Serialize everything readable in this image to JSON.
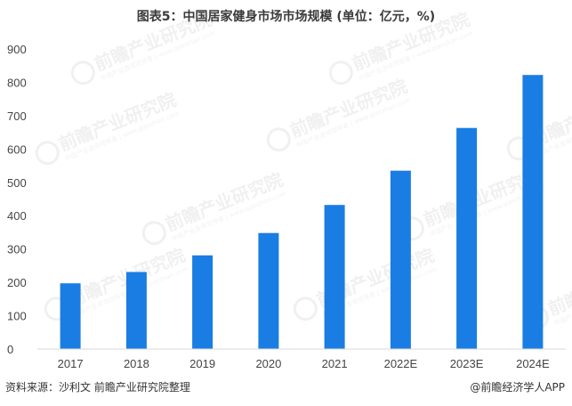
{
  "title": "图表5：中国居家健身市场市场规模 (单位：亿元，%)",
  "chart_data": {
    "type": "bar",
    "categories": [
      "2017",
      "2018",
      "2019",
      "2020",
      "2021",
      "2022E",
      "2023E",
      "2024E"
    ],
    "values": [
      197,
      231,
      281,
      348,
      432,
      535,
      663,
      822
    ],
    "ylim": [
      0,
      900
    ],
    "yticks": [
      0,
      100,
      200,
      300,
      400,
      500,
      600,
      700,
      800,
      900
    ],
    "grid": false,
    "bar_color": "#1a7de3"
  },
  "watermark": {
    "text": "前瞻产业研究院",
    "subtext": "中国产业咨询领导者 | www.qianzhan.com"
  },
  "footer": {
    "source": "资料来源：沙利文 前瞻产业研究院整理",
    "brand": "@前瞻经济学人APP"
  }
}
